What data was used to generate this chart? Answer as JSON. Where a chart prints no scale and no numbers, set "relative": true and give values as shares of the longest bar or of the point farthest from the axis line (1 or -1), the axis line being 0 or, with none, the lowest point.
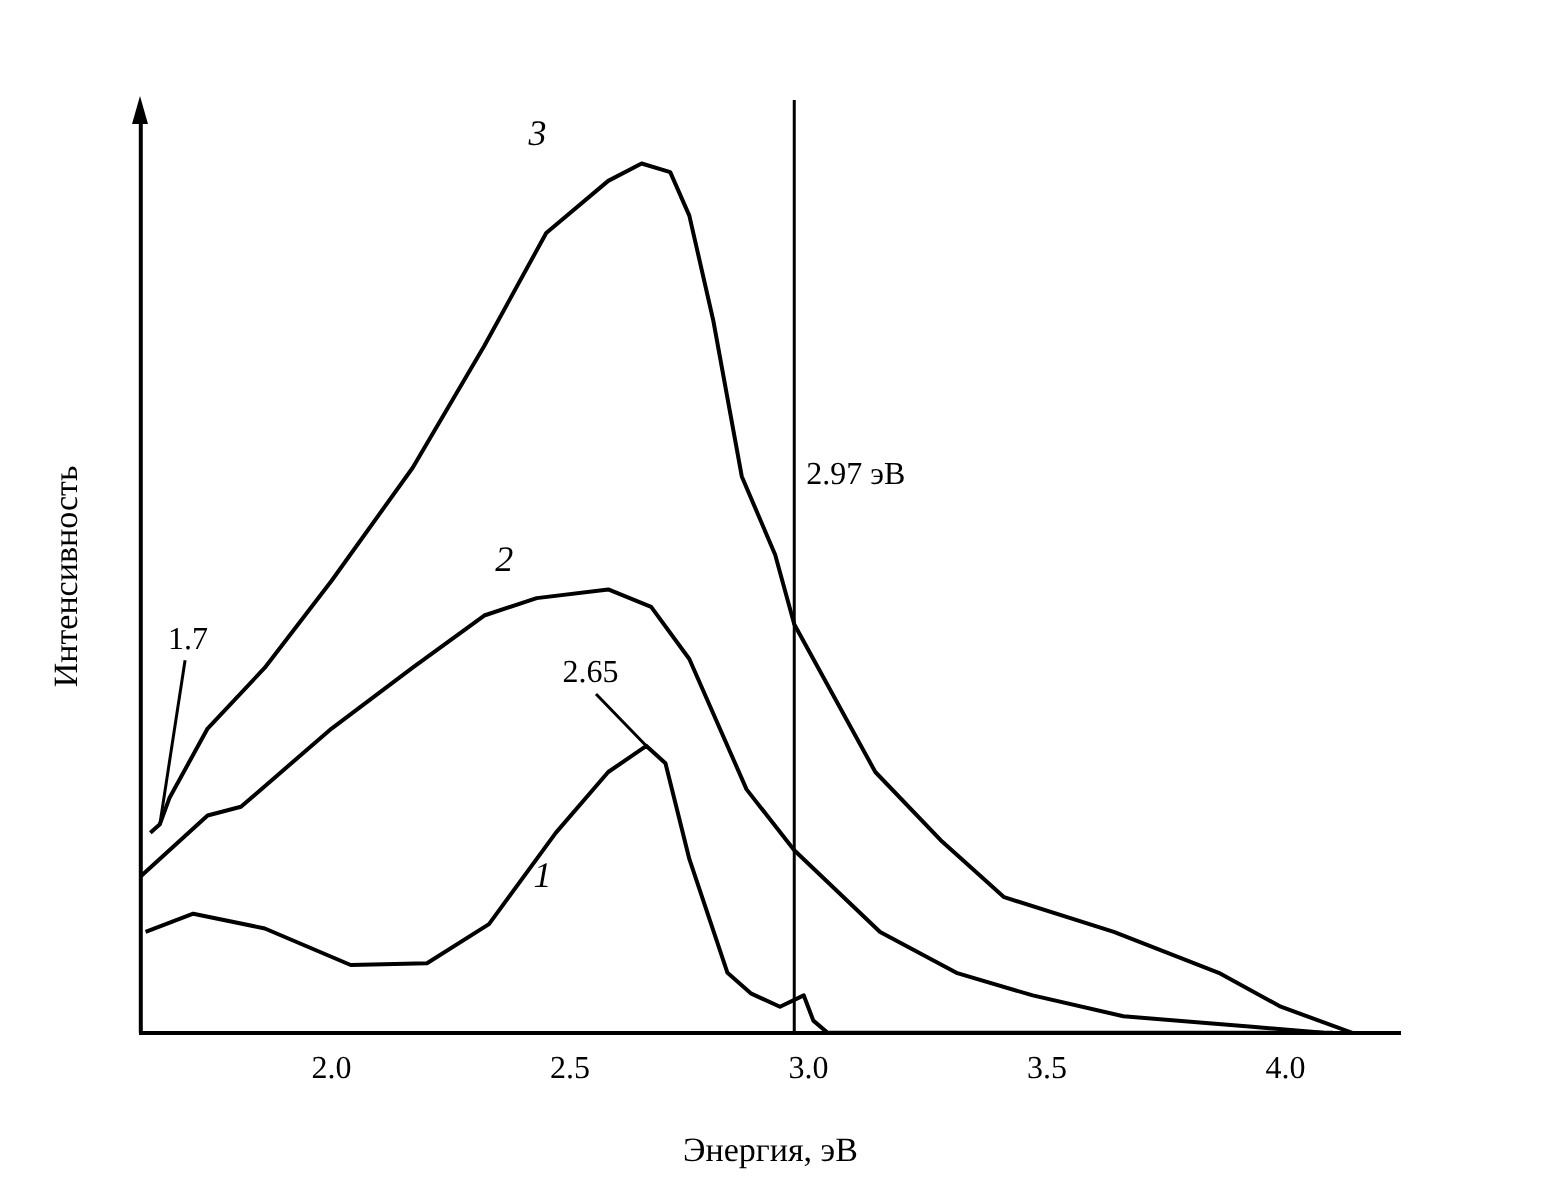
{
  "chart_data": {
    "type": "line",
    "xlabel": "Энергия, эВ",
    "ylabel": "Интенсивность",
    "relative": true,
    "xlim": [
      1.6,
      4.24
    ],
    "xticks": [
      {
        "value": 2,
        "label": "2.0"
      },
      {
        "value": 2.5,
        "label": "2.5"
      },
      {
        "value": 3,
        "label": "3.0"
      },
      {
        "value": 3.5,
        "label": "3.5"
      },
      {
        "value": 4,
        "label": "4.0"
      }
    ],
    "grid": false,
    "legend": false,
    "marker": "none",
    "line_style": "solid",
    "series": [
      {
        "name": "1",
        "color": "#000000",
        "x": [
          1.61,
          1.71,
          1.86,
          2.04,
          2.2,
          2.33,
          2.47,
          2.58,
          2.66,
          2.7,
          2.75,
          2.83,
          2.88,
          2.94,
          2.99,
          3.01,
          3.04,
          4.1
        ],
        "values": [
          0.116,
          0.137,
          0.12,
          0.078,
          0.08,
          0.125,
          0.23,
          0.3,
          0.33,
          0.31,
          0.2,
          0.069,
          0.045,
          0.03,
          0.043,
          0.014,
          0,
          0
        ]
      },
      {
        "name": "2",
        "color": "#000000",
        "x": [
          1.6,
          1.74,
          1.81,
          2.0,
          2.17,
          2.32,
          2.43,
          2.58,
          2.67,
          2.75,
          2.87,
          2.97,
          3.15,
          3.31,
          3.47,
          3.66,
          3.93,
          4.08
        ],
        "values": [
          0.18,
          0.25,
          0.26,
          0.35,
          0.42,
          0.48,
          0.5,
          0.51,
          0.49,
          0.43,
          0.28,
          0.21,
          0.116,
          0.069,
          0.043,
          0.019,
          0.007,
          0
        ]
      },
      {
        "name": "3",
        "color": "#000000",
        "x": [
          1.62,
          1.64,
          1.66,
          1.74,
          1.86,
          2.0,
          2.17,
          2.32,
          2.45,
          2.58,
          2.65,
          2.71,
          2.75,
          2.8,
          2.86,
          2.93,
          2.97,
          3.14,
          3.28,
          3.41,
          3.64,
          3.86,
          3.99,
          4.14
        ],
        "values": [
          0.23,
          0.24,
          0.27,
          0.35,
          0.42,
          0.52,
          0.65,
          0.79,
          0.92,
          0.98,
          1,
          0.99,
          0.94,
          0.82,
          0.64,
          0.55,
          0.47,
          0.3,
          0.22,
          0.156,
          0.116,
          0.069,
          0.03,
          0
        ]
      }
    ],
    "ref_lines": [
      {
        "axis": "x",
        "value": 2.97,
        "label": "2.97 эВ"
      }
    ],
    "annotations": [
      {
        "text": "1.7",
        "x": 1.64,
        "y": 0.24
      },
      {
        "text": "2.65",
        "x": 2.66,
        "y": 0.33
      }
    ]
  }
}
